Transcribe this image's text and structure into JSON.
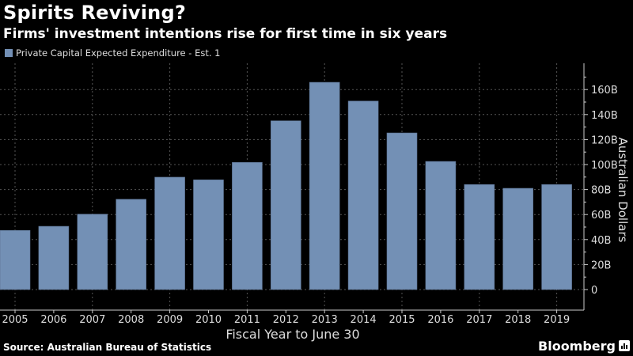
{
  "chart_data": {
    "type": "bar",
    "title": "Spirits Reviving?",
    "subtitle": "Firms' investment intentions rise for first time in six years",
    "categories": [
      "2005",
      "2006",
      "2007",
      "2008",
      "2009",
      "2010",
      "2011",
      "2012",
      "2013",
      "2014",
      "2015",
      "2016",
      "2017",
      "2018",
      "2019"
    ],
    "series": [
      {
        "name": "Private Capital Expected Expenditure - Est. 1",
        "color": "#7390b5",
        "values": [
          47.3,
          50.6,
          60.3,
          72.2,
          89.9,
          87.8,
          101.7,
          135.0,
          165.8,
          150.8,
          125.3,
          102.5,
          84.0,
          81.0,
          84.0
        ]
      }
    ],
    "xlabel": "Fiscal Year to June 30",
    "ylabel": "Australian Dollars",
    "ylim": [
      0,
      175
    ],
    "yticks": [
      0,
      20,
      40,
      60,
      80,
      100,
      120,
      140,
      160
    ],
    "ytick_labels": [
      "0",
      "20B",
      "40B",
      "60B",
      "80B",
      "100B",
      "120B",
      "140B",
      "160B"
    ],
    "y_axis_side": "right",
    "grid": true,
    "legend_position": "top-left"
  },
  "footer": {
    "source": "Source: Australian Bureau of Statistics",
    "brand": "Bloomberg"
  }
}
